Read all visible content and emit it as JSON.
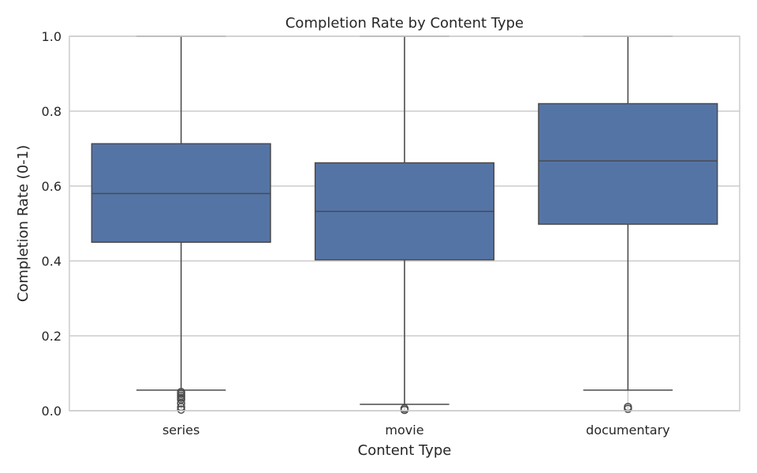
{
  "chart_data": {
    "type": "box",
    "title": "Completion Rate by Content Type",
    "xlabel": "Content Type",
    "ylabel": "Completion Rate (0-1)",
    "ylim": [
      0,
      1.0
    ],
    "yticks": [
      "0.0",
      "0.2",
      "0.4",
      "0.6",
      "0.8",
      "1.0"
    ],
    "grid": true,
    "categories": [
      "series",
      "movie",
      "documentary"
    ],
    "boxes": [
      {
        "category": "series",
        "whisker_low": 0.055,
        "q1": 0.45,
        "median": 0.58,
        "q3": 0.713,
        "whisker_high": 1.0,
        "outliers": [
          0.05,
          0.045,
          0.04,
          0.035,
          0.03,
          0.02,
          0.01,
          0.003
        ]
      },
      {
        "category": "movie",
        "whisker_low": 0.017,
        "q1": 0.403,
        "median": 0.532,
        "q3": 0.662,
        "whisker_high": 1.0,
        "outliers": [
          0.006,
          0.002
        ]
      },
      {
        "category": "documentary",
        "whisker_low": 0.055,
        "q1": 0.498,
        "median": 0.667,
        "q3": 0.82,
        "whisker_high": 1.0,
        "outliers": [
          0.01,
          0.005
        ]
      }
    ],
    "colors": {
      "box_fill": "#5574a6",
      "line": "#4a4a4a",
      "grid": "#cccccc",
      "frame": "#cccccc"
    }
  }
}
